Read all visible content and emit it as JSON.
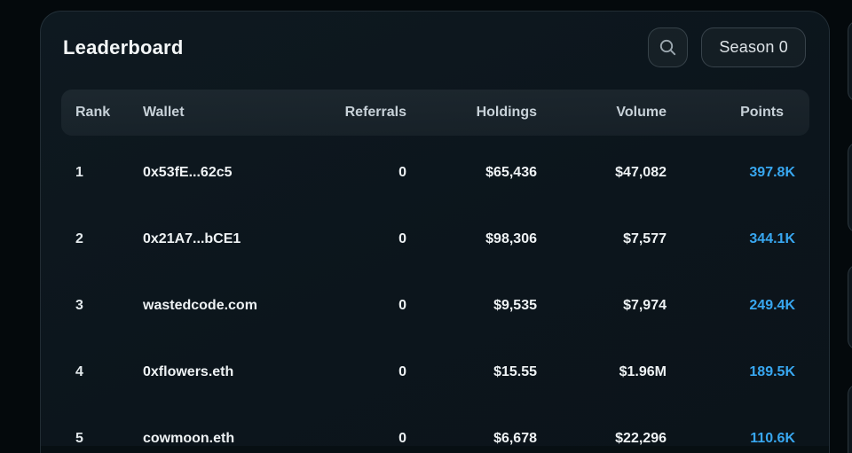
{
  "header": {
    "title": "Leaderboard",
    "season_button": "Season 0",
    "search_icon": "magnifying-glass"
  },
  "table": {
    "columns": [
      "Rank",
      "Wallet",
      "Referrals",
      "Holdings",
      "Volume",
      "Points"
    ],
    "rows": [
      {
        "rank": "1",
        "wallet": "0x53fE...62c5",
        "referrals": "0",
        "holdings": "$65,436",
        "volume": "$47,082",
        "points": "397.8K"
      },
      {
        "rank": "2",
        "wallet": "0x21A7...bCE1",
        "referrals": "0",
        "holdings": "$98,306",
        "volume": "$7,577",
        "points": "344.1K"
      },
      {
        "rank": "3",
        "wallet": "wastedcode.com",
        "referrals": "0",
        "holdings": "$9,535",
        "volume": "$7,974",
        "points": "249.4K"
      },
      {
        "rank": "4",
        "wallet": "0xflowers.eth",
        "referrals": "0",
        "holdings": "$15.55",
        "volume": "$1.96M",
        "points": "189.5K"
      },
      {
        "rank": "5",
        "wallet": "cowmoon.eth",
        "referrals": "0",
        "holdings": "$6,678",
        "volume": "$22,296",
        "points": "110.6K"
      }
    ]
  },
  "colors": {
    "points_accent": "#38a7f0",
    "card_background": "#0c151c",
    "page_background": "#04090c",
    "header_row_background": "#18242c"
  }
}
